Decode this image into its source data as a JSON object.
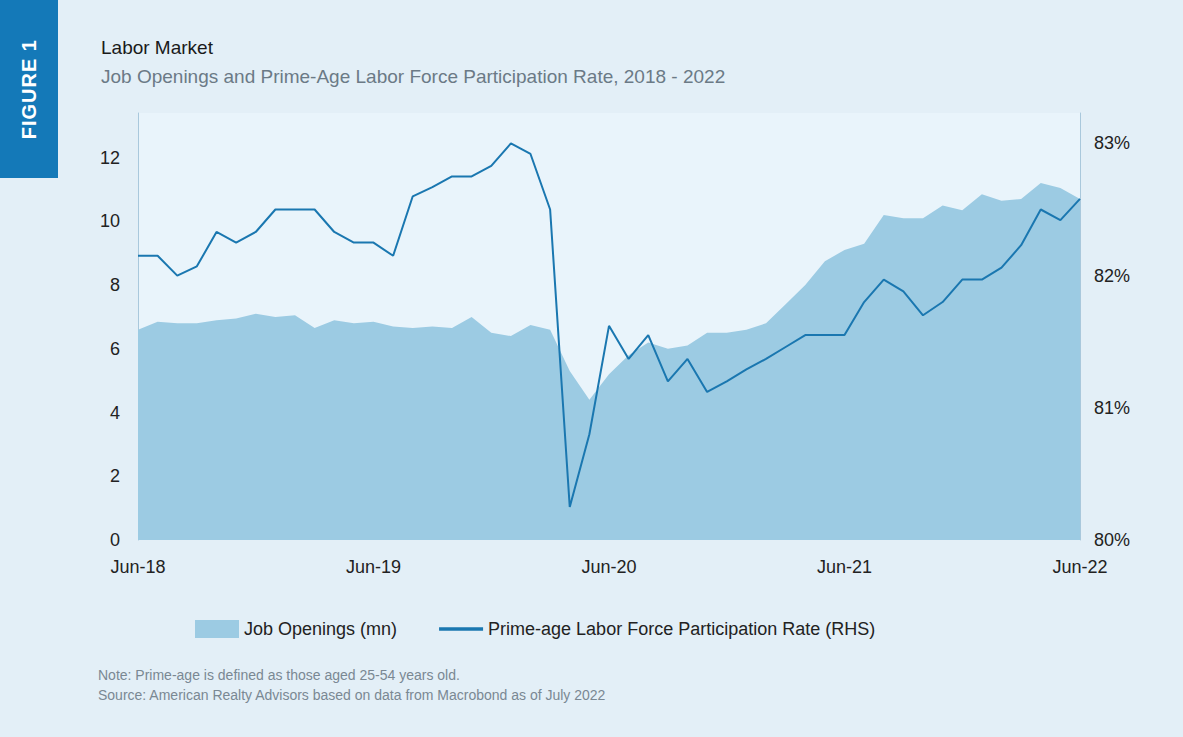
{
  "chart_data": {
    "type": "line",
    "title": "Labor Market",
    "subtitle": "Job Openings and Prime-Age Labor Force Participation Rate, 2018 - 2022",
    "figure_label": "FIGURE 1",
    "notes": [
      "Note: Prime-age is defined as those aged 25-54 years old.",
      "Source: American Realty Advisors based on data from Macrobond as of July 2022"
    ],
    "categories": [
      "Jun-18",
      null,
      null,
      null,
      null,
      null,
      null,
      null,
      null,
      null,
      null,
      null,
      "Jun-19",
      null,
      null,
      null,
      null,
      null,
      null,
      null,
      null,
      null,
      null,
      null,
      "Jun-20",
      null,
      null,
      null,
      null,
      null,
      null,
      null,
      null,
      null,
      null,
      null,
      "Jun-21",
      null,
      null,
      null,
      null,
      null,
      null,
      null,
      null,
      null,
      null,
      null,
      "Jun-22"
    ],
    "series": [
      {
        "name": "Job Openings (mn)",
        "type": "area",
        "color": "#9ccbe3",
        "values": [
          6.6,
          6.85,
          6.8,
          6.8,
          6.9,
          6.95,
          7.1,
          7.0,
          7.05,
          6.65,
          6.9,
          6.8,
          6.85,
          6.7,
          6.65,
          6.7,
          6.65,
          7.0,
          6.5,
          6.4,
          6.75,
          6.6,
          5.3,
          4.4,
          5.2,
          5.8,
          6.2,
          6.0,
          6.1,
          6.5,
          6.5,
          6.6,
          6.8,
          7.4,
          8.0,
          8.75,
          9.1,
          9.3,
          10.2,
          10.1,
          10.1,
          10.5,
          10.35,
          10.85,
          10.65,
          10.7,
          11.2,
          11.05,
          10.7
        ]
      },
      {
        "name": "Prime-age Labor Force Participation Rate (RHS)",
        "type": "line",
        "color": "#1a77b0",
        "axis": "y2",
        "values": [
          82.15,
          82.15,
          82.0,
          82.07,
          82.33,
          82.25,
          82.33,
          82.5,
          82.5,
          82.5,
          82.33,
          82.25,
          82.25,
          82.15,
          82.6,
          82.67,
          82.75,
          82.75,
          82.83,
          83.0,
          82.92,
          82.5,
          80.25,
          80.8,
          81.62,
          81.37,
          81.55,
          81.2,
          81.37,
          81.12,
          81.2,
          81.29,
          81.37,
          81.46,
          81.55,
          81.55,
          81.55,
          81.8,
          81.97,
          81.88,
          81.7,
          81.8,
          81.97,
          81.97,
          82.06,
          82.23,
          82.5,
          82.42,
          82.58
        ]
      }
    ],
    "ylim": [
      0,
      13.4
    ],
    "yticks": [
      0,
      2,
      4,
      6,
      8,
      10,
      12
    ],
    "y2lim": [
      80,
      83.23
    ],
    "y2ticks": [
      {
        "value": 80,
        "label": "80%"
      },
      {
        "value": 81,
        "label": "81%"
      },
      {
        "value": 82,
        "label": "82%"
      },
      {
        "value": 83,
        "label": "83%"
      }
    ],
    "grid": false,
    "legend": "bottom"
  }
}
